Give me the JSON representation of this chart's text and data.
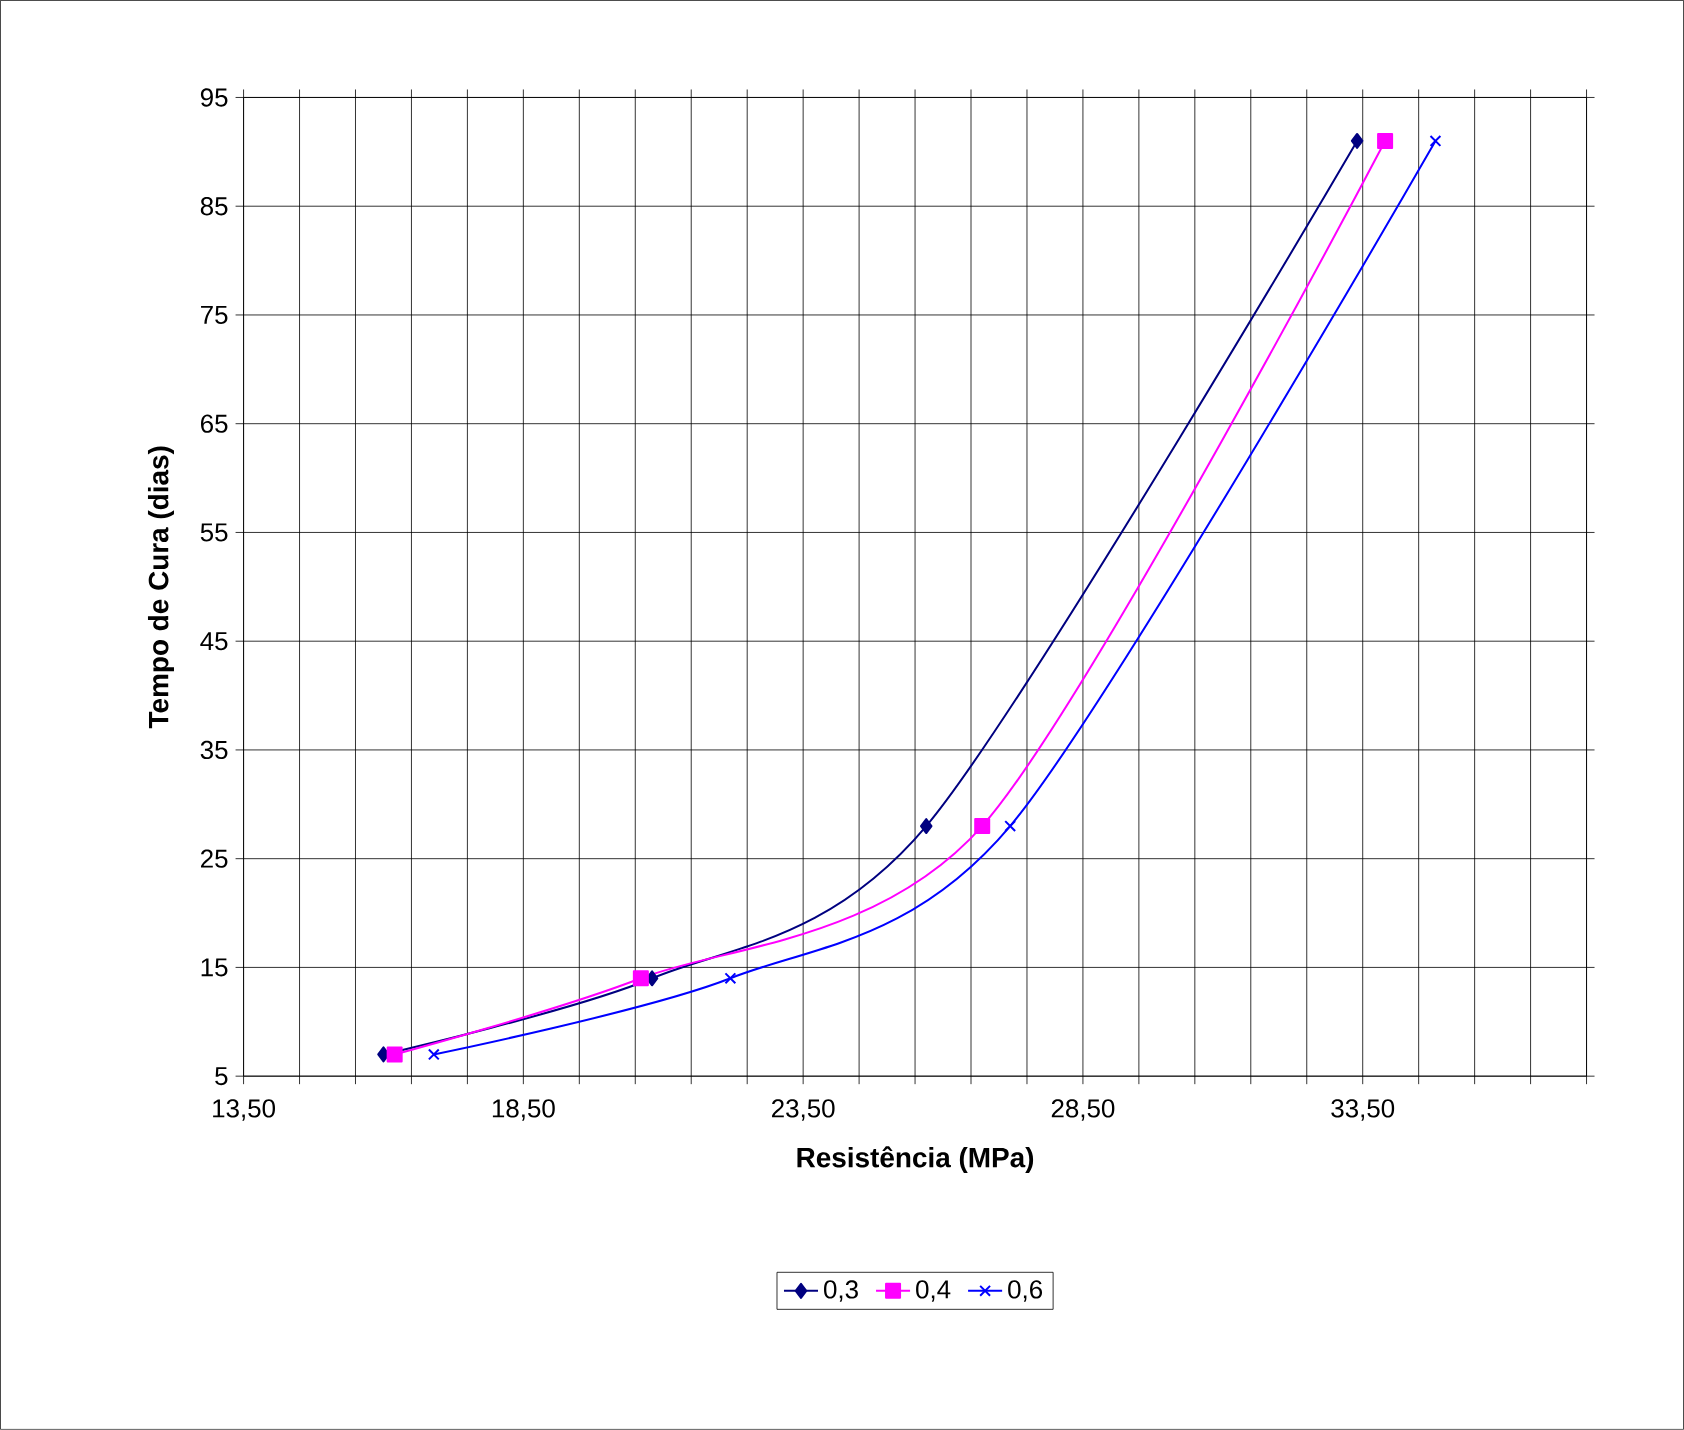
{
  "chart_data": {
    "type": "line",
    "xlabel": "Resistência (MPa)",
    "ylabel": "Tempo de Cura (dias)",
    "xlim": [
      13.5,
      37.5
    ],
    "ylim": [
      5,
      95
    ],
    "xticks": [
      {
        "value": 13.5,
        "label": "13,50"
      },
      {
        "value": 14.5,
        "label": null
      },
      {
        "value": 15.5,
        "label": null
      },
      {
        "value": 16.5,
        "label": null
      },
      {
        "value": 17.5,
        "label": null
      },
      {
        "value": 18.5,
        "label": "18,50"
      },
      {
        "value": 19.5,
        "label": null
      },
      {
        "value": 20.5,
        "label": null
      },
      {
        "value": 21.5,
        "label": null
      },
      {
        "value": 22.5,
        "label": null
      },
      {
        "value": 23.5,
        "label": "23,50"
      },
      {
        "value": 24.5,
        "label": null
      },
      {
        "value": 25.5,
        "label": null
      },
      {
        "value": 26.5,
        "label": null
      },
      {
        "value": 27.5,
        "label": null
      },
      {
        "value": 28.5,
        "label": "28,50"
      },
      {
        "value": 29.5,
        "label": null
      },
      {
        "value": 30.5,
        "label": null
      },
      {
        "value": 31.5,
        "label": null
      },
      {
        "value": 32.5,
        "label": null
      },
      {
        "value": 33.5,
        "label": "33,50"
      },
      {
        "value": 34.5,
        "label": null
      },
      {
        "value": 35.5,
        "label": null
      },
      {
        "value": 36.5,
        "label": null
      },
      {
        "value": 37.5,
        "label": null
      }
    ],
    "yticks": [
      5,
      15,
      25,
      35,
      45,
      55,
      65,
      75,
      85,
      95
    ],
    "grid": true,
    "legend": "bottom",
    "line_style": "solid",
    "series": [
      {
        "name": "0,3",
        "color": "#000080",
        "marker": "diamond",
        "x": [
          16.0,
          20.8,
          25.7,
          33.4
        ],
        "values": [
          7,
          14,
          28,
          91
        ]
      },
      {
        "name": "0,4",
        "color": "#ff00ff",
        "marker": "square",
        "x": [
          16.2,
          20.6,
          26.7,
          33.9
        ],
        "values": [
          7,
          14,
          28,
          91
        ]
      },
      {
        "name": "0,6",
        "color": "#0000ff",
        "marker": "cross",
        "x": [
          16.9,
          22.2,
          27.2,
          34.8
        ],
        "values": [
          7,
          14,
          28,
          91
        ]
      }
    ]
  }
}
